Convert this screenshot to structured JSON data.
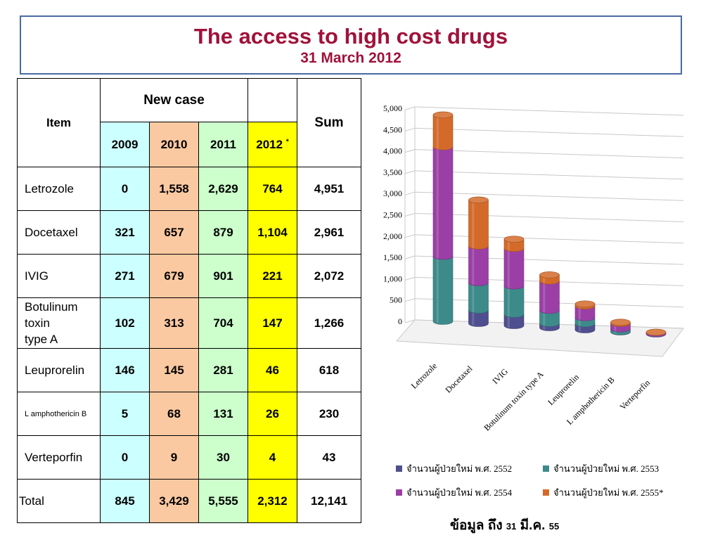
{
  "title": "The access to high cost drugs",
  "subtitle": "31 March 2012",
  "table": {
    "item_header": "Item",
    "new_case_header": "New case",
    "sum_header": "Sum",
    "years": [
      "2009",
      "2010",
      "2011",
      "2012"
    ],
    "year_2012_mark": "*",
    "rows": [
      {
        "item": "Letrozole",
        "v2009": "0",
        "v2010": "1,558",
        "v2011": "2,629",
        "v2012": "764",
        "sum": "4,951"
      },
      {
        "item": "Docetaxel",
        "v2009": "321",
        "v2010": "657",
        "v2011": "879",
        "v2012": "1,104",
        "sum": "2,961"
      },
      {
        "item": "IVIG",
        "v2009": "271",
        "v2010": "679",
        "v2011": "901",
        "v2012": "221",
        "sum": "2,072"
      },
      {
        "item_lines": [
          "Botulinum",
          "toxin",
          "type A"
        ],
        "v2009": "102",
        "v2010": "313",
        "v2011": "704",
        "v2012": "147",
        "sum": "1,266"
      },
      {
        "item": "Leuprorelin",
        "v2009": "146",
        "v2010": "145",
        "v2011": "281",
        "v2012": "46",
        "sum": "618"
      },
      {
        "item": "L amphothericin B",
        "v2009": "5",
        "v2010": "68",
        "v2011": "131",
        "v2012": "26",
        "sum": "230"
      },
      {
        "item": "Verteporfin",
        "v2009": "0",
        "v2010": "9",
        "v2011": "30",
        "v2012": "4",
        "sum": "43"
      }
    ],
    "total": {
      "item": "Total",
      "v2009": "845",
      "v2010": "3,429",
      "v2011": "5,555",
      "v2012": "2,312",
      "sum": "12,141"
    }
  },
  "chart_data": {
    "type": "bar",
    "stacked": true,
    "style": "3d-cylinder",
    "categories": [
      "Letrozole",
      "Docetaxel",
      "IVIG",
      "Botulinum toxin type A",
      "Leuprorelin",
      "L amphothericin B",
      "Verteporfin"
    ],
    "series": [
      {
        "name": "จำนวนผู้ป่วยใหม่  พ.ศ. 2552",
        "color": "#4f4f8f",
        "values": [
          0,
          321,
          271,
          102,
          146,
          5,
          0
        ]
      },
      {
        "name": "จำนวนผู้ป่วยใหม่  พ.ศ. 2553",
        "color": "#3d8a8a",
        "values": [
          1558,
          657,
          679,
          313,
          145,
          68,
          9
        ]
      },
      {
        "name": "จำนวนผู้ป่วยใหม่  พ.ศ. 2554",
        "color": "#9b3fa6",
        "values": [
          2629,
          879,
          901,
          704,
          281,
          131,
          30
        ]
      },
      {
        "name": "จำนวนผู้ป่วยใหม่  พ.ศ. 2555*",
        "color": "#d46a2a",
        "values": [
          764,
          1104,
          221,
          147,
          46,
          26,
          4
        ]
      }
    ],
    "yticks": [
      "0",
      "500",
      "1,000",
      "1,500",
      "2,000",
      "2,500",
      "3,000",
      "3,500",
      "4,000",
      "4,500",
      "5,000"
    ],
    "ylim": [
      0,
      5000
    ],
    "grid": true,
    "legend_position": "bottom"
  },
  "footnote": {
    "prefix": "ข้อมูล  ถึง ",
    "num1": "31",
    "mid": " มี.ค. ",
    "num2": "55"
  }
}
